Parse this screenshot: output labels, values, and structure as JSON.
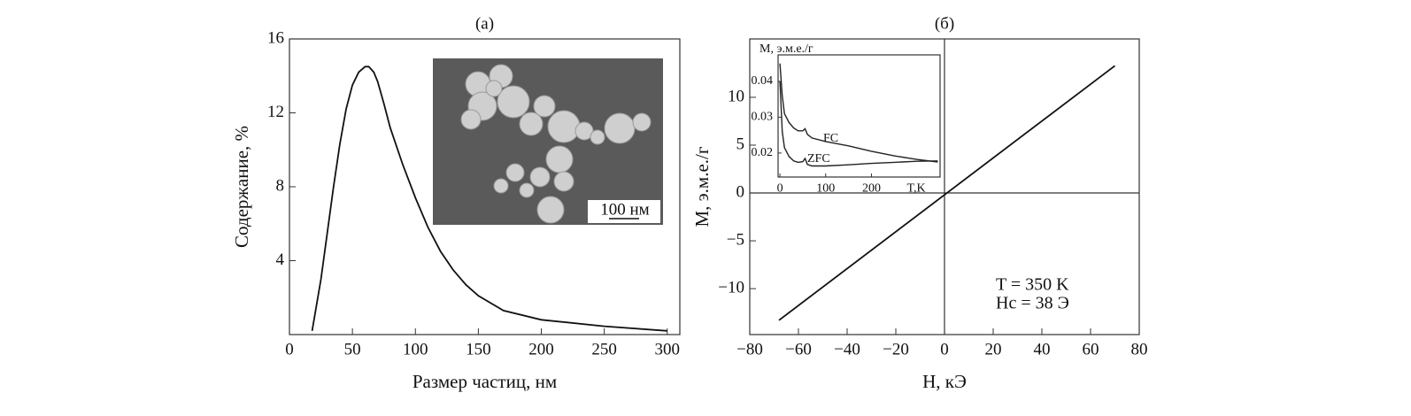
{
  "chart_data": [
    {
      "type": "line",
      "title": "(а)",
      "xlabel": "Размер частиц, нм",
      "ylabel": "Содержание, %",
      "x": [
        18,
        25,
        30,
        35,
        40,
        45,
        50,
        55,
        60,
        63,
        67,
        70,
        75,
        80,
        90,
        100,
        110,
        120,
        130,
        140,
        150,
        170,
        200,
        250,
        300
      ],
      "values": [
        0.2,
        3,
        5.5,
        8,
        10.3,
        12.2,
        13.5,
        14.2,
        14.5,
        14.5,
        14.2,
        13.7,
        12.5,
        11.2,
        9.2,
        7.4,
        5.8,
        4.5,
        3.5,
        2.7,
        2.1,
        1.3,
        0.8,
        0.45,
        0.2
      ],
      "color": "#111111",
      "xlim": [
        0,
        310
      ],
      "xticks": [
        0,
        50,
        100,
        150,
        200,
        250,
        300
      ],
      "ylim": [
        0,
        16
      ],
      "yticks": [
        4,
        8,
        12,
        16
      ],
      "annotations": [
        "100 нм"
      ]
    },
    {
      "type": "line",
      "title": "(б)",
      "xlabel": "H, кЭ",
      "ylabel": "M, э.м.е./г",
      "x": [
        -68,
        70
      ],
      "values": [
        -13.3,
        13.3
      ],
      "color": "#111111",
      "xlim": [
        -80,
        80
      ],
      "xticks": [
        {
          "value": -80,
          "label": "−80"
        },
        {
          "value": -60,
          "label": "−60"
        },
        {
          "value": -40,
          "label": "−40"
        },
        {
          "value": -20,
          "label": "−20"
        },
        0,
        20,
        40,
        60,
        80
      ],
      "ylim": [
        -14.8,
        16.1
      ],
      "yticks": [
        {
          "value": -10,
          "label": "−10"
        },
        {
          "value": -5,
          "label": "−5"
        },
        0,
        5,
        10
      ],
      "zero_lines": true,
      "annotations": [
        "T = 350 K",
        "Hc = 38 Э"
      ]
    },
    {
      "type": "line",
      "ylabel": "M, э.м.е./г",
      "xlabel": "T,K",
      "x": [
        0,
        5,
        10,
        20,
        30,
        40,
        50,
        55,
        60,
        70,
        100,
        150,
        200,
        250,
        300,
        345
      ],
      "series": [
        {
          "name": "FC",
          "color": "#222222",
          "values": [
            0.045,
            0.036,
            0.031,
            0.0285,
            0.027,
            0.0262,
            0.0262,
            0.0268,
            0.0252,
            0.0242,
            0.0232,
            0.022,
            0.0205,
            0.0192,
            0.0182,
            0.0175
          ]
        },
        {
          "name": "ZFC",
          "color": "#222222",
          "values": [
            0.04,
            0.026,
            0.0215,
            0.019,
            0.0178,
            0.0174,
            0.0176,
            0.0185,
            0.0168,
            0.0164,
            0.0164,
            0.0167,
            0.0171,
            0.0174,
            0.0177,
            0.0178
          ]
        }
      ],
      "xlim": [
        -4,
        350
      ],
      "xticks": [
        0,
        100,
        200
      ],
      "ylim": [
        0.0133,
        0.0474
      ],
      "yticks": [
        0.02,
        0.03,
        0.04
      ]
    }
  ]
}
